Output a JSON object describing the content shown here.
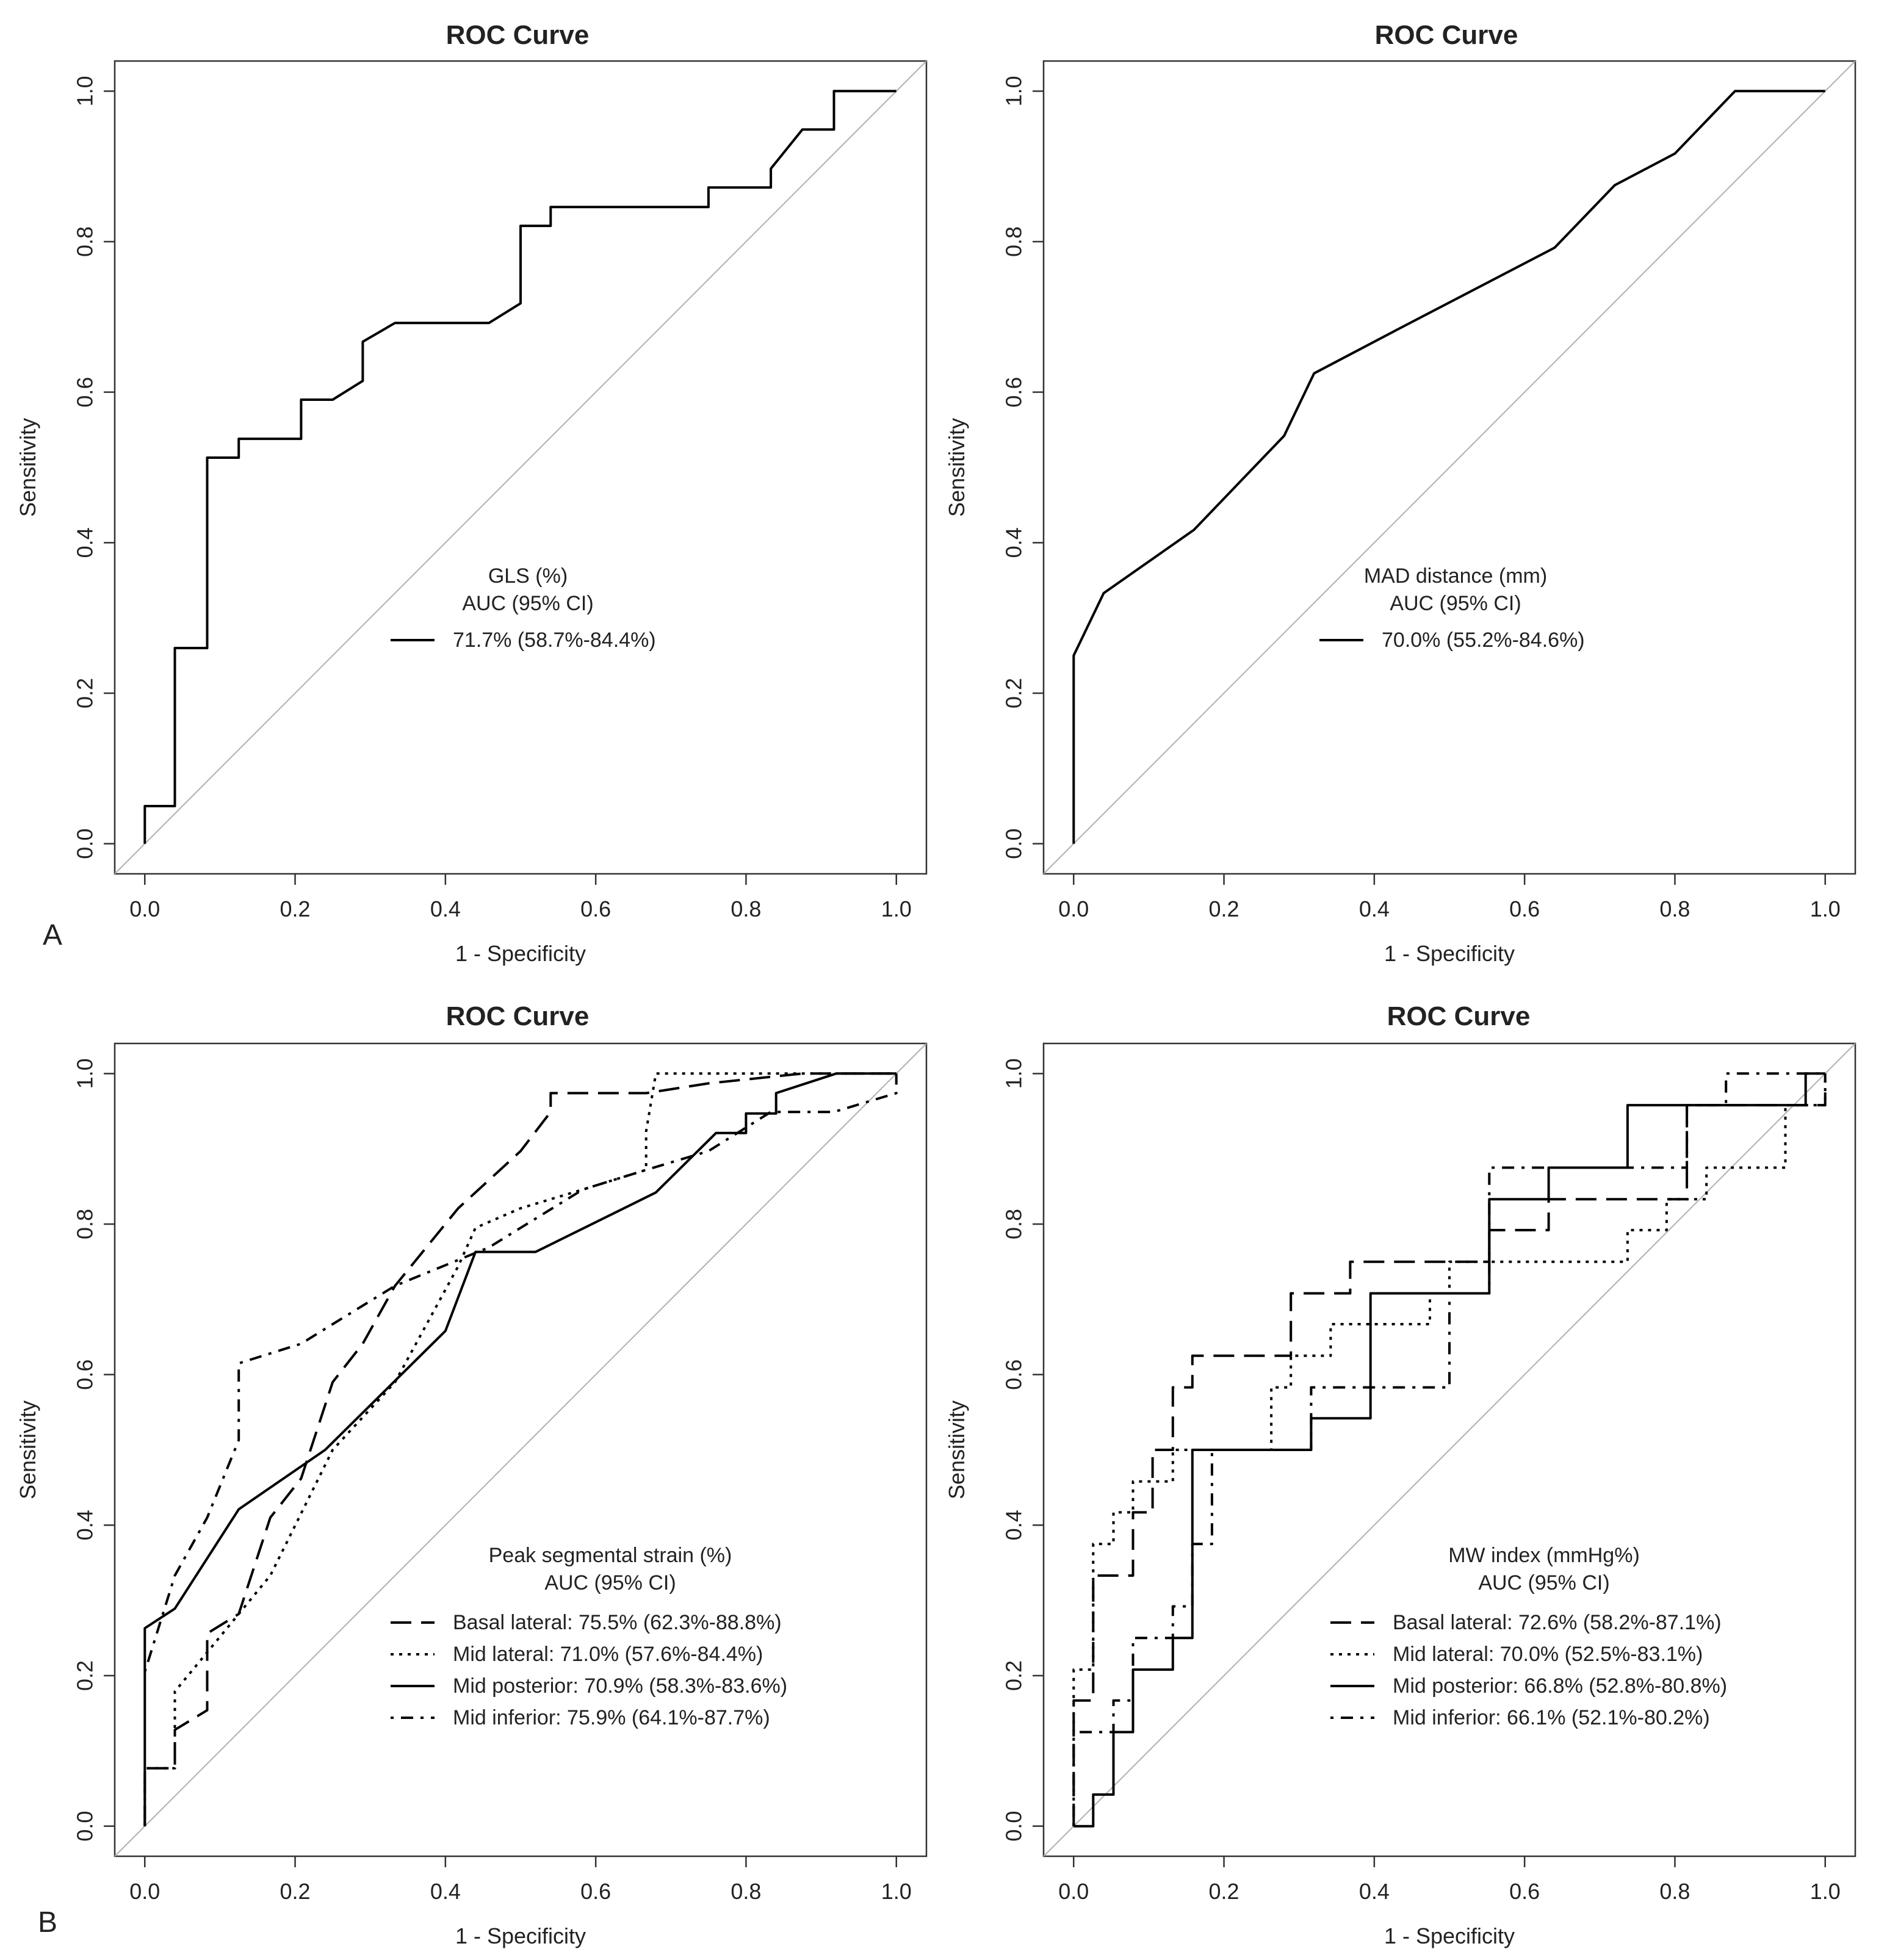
{
  "panel_letters": [
    "A",
    "B"
  ],
  "chart_data": [
    {
      "type": "line",
      "title": "ROC Curve",
      "xlabel": "1 - Specificity",
      "ylabel": "Sensitivity",
      "xlim": [
        0,
        1
      ],
      "ylim": [
        0,
        1
      ],
      "xticks": [
        "0.0",
        "0.2",
        "0.4",
        "0.6",
        "0.8",
        "1.0"
      ],
      "yticks": [
        "0.0",
        "0.2",
        "0.4",
        "0.6",
        "0.8",
        "1.0"
      ],
      "legend_title": [
        "GLS (%)",
        "AUC (95% CI)"
      ],
      "series": [
        {
          "name": "GLS (%)",
          "label": "71.7% (58.7%-84.4%)",
          "dash": "solid",
          "points": [
            [
              0,
              0
            ],
            [
              0,
              0.05
            ],
            [
              0.04,
              0.05
            ],
            [
              0.04,
              0.26
            ],
            [
              0.083,
              0.26
            ],
            [
              0.083,
              0.513
            ],
            [
              0.125,
              0.513
            ],
            [
              0.125,
              0.538
            ],
            [
              0.208,
              0.538
            ],
            [
              0.208,
              0.59
            ],
            [
              0.25,
              0.59
            ],
            [
              0.29,
              0.615
            ],
            [
              0.29,
              0.667
            ],
            [
              0.333,
              0.692
            ],
            [
              0.458,
              0.692
            ],
            [
              0.5,
              0.718
            ],
            [
              0.5,
              0.821
            ],
            [
              0.54,
              0.821
            ],
            [
              0.54,
              0.846
            ],
            [
              0.75,
              0.846
            ],
            [
              0.75,
              0.872
            ],
            [
              0.833,
              0.872
            ],
            [
              0.833,
              0.897
            ],
            [
              0.875,
              0.949
            ],
            [
              0.917,
              0.949
            ],
            [
              0.917,
              1
            ],
            [
              1,
              1
            ]
          ]
        }
      ]
    },
    {
      "type": "line",
      "title": "ROC Curve",
      "xlabel": "1 - Specificity",
      "ylabel": "Sensitivity",
      "xlim": [
        0,
        1
      ],
      "ylim": [
        0,
        1
      ],
      "xticks": [
        "0.0",
        "0.2",
        "0.4",
        "0.6",
        "0.8",
        "1.0"
      ],
      "yticks": [
        "0.0",
        "0.2",
        "0.4",
        "0.6",
        "0.8",
        "1.0"
      ],
      "legend_title": [
        "MAD distance (mm)",
        "AUC (95% CI)"
      ],
      "series": [
        {
          "name": "MAD distance (mm)",
          "label": "70.0% (55.2%-84.6%)",
          "dash": "solid",
          "points": [
            [
              0,
              0
            ],
            [
              0,
              0.25
            ],
            [
              0.04,
              0.333
            ],
            [
              0.16,
              0.417
            ],
            [
              0.28,
              0.542
            ],
            [
              0.32,
              0.625
            ],
            [
              0.44,
              0.688
            ],
            [
              0.64,
              0.792
            ],
            [
              0.72,
              0.875
            ],
            [
              0.8,
              0.917
            ],
            [
              0.88,
              1
            ],
            [
              1,
              1
            ]
          ]
        }
      ]
    },
    {
      "type": "line",
      "title": "ROC Curve",
      "xlabel": "1 - Specificity",
      "ylabel": "Sensitivity",
      "xlim": [
        0,
        1
      ],
      "ylim": [
        0,
        1
      ],
      "xticks": [
        "0.0",
        "0.2",
        "0.4",
        "0.6",
        "0.8",
        "1.0"
      ],
      "yticks": [
        "0.0",
        "0.2",
        "0.4",
        "0.6",
        "0.8",
        "1.0"
      ],
      "legend_title": [
        "Peak segmental strain (%)",
        "AUC (95% CI)"
      ],
      "series": [
        {
          "name": "Basal lateral:",
          "label": "Basal lateral:  75.5% (62.3%-88.8%)",
          "dash": "longdash",
          "points": [
            [
              0,
              0
            ],
            [
              0,
              0.077
            ],
            [
              0.04,
              0.077
            ],
            [
              0.04,
              0.128
            ],
            [
              0.083,
              0.154
            ],
            [
              0.083,
              0.256
            ],
            [
              0.125,
              0.282
            ],
            [
              0.167,
              0.41
            ],
            [
              0.208,
              0.462
            ],
            [
              0.25,
              0.59
            ],
            [
              0.29,
              0.641
            ],
            [
              0.333,
              0.718
            ],
            [
              0.417,
              0.821
            ],
            [
              0.5,
              0.897
            ],
            [
              0.54,
              0.949
            ],
            [
              0.54,
              0.974
            ],
            [
              0.667,
              0.974
            ],
            [
              0.75,
              0.987
            ],
            [
              0.875,
              1
            ],
            [
              1,
              1
            ]
          ]
        },
        {
          "name": "Mid lateral:",
          "label": "Mid lateral: 71.0% (57.6%-84.4%)",
          "dash": "dotted",
          "points": [
            [
              0,
              0
            ],
            [
              0,
              0.077
            ],
            [
              0.04,
              0.077
            ],
            [
              0.04,
              0.179
            ],
            [
              0.083,
              0.231
            ],
            [
              0.125,
              0.282
            ],
            [
              0.167,
              0.333
            ],
            [
              0.25,
              0.5
            ],
            [
              0.333,
              0.59
            ],
            [
              0.375,
              0.667
            ],
            [
              0.417,
              0.744
            ],
            [
              0.44,
              0.795
            ],
            [
              0.5,
              0.821
            ],
            [
              0.583,
              0.846
            ],
            [
              0.667,
              0.872
            ],
            [
              0.667,
              0.923
            ],
            [
              0.68,
              1
            ],
            [
              1,
              1
            ]
          ]
        },
        {
          "name": "Mid posterior:",
          "label": "Mid posterior: 70.9% (58.3%-83.6%)",
          "dash": "solid",
          "points": [
            [
              0,
              0
            ],
            [
              0,
              0.263
            ],
            [
              0.04,
              0.289
            ],
            [
              0.125,
              0.421
            ],
            [
              0.24,
              0.5
            ],
            [
              0.4,
              0.658
            ],
            [
              0.44,
              0.763
            ],
            [
              0.52,
              0.763
            ],
            [
              0.68,
              0.842
            ],
            [
              0.76,
              0.921
            ],
            [
              0.8,
              0.921
            ],
            [
              0.8,
              0.947
            ],
            [
              0.84,
              0.947
            ],
            [
              0.84,
              0.974
            ],
            [
              0.92,
              1
            ],
            [
              1,
              1
            ]
          ]
        },
        {
          "name": "Mid inferior:",
          "label": "Mid inferior: 75.9% (64.1%-87.7%)",
          "dash": "dashdot",
          "points": [
            [
              0,
              0.205
            ],
            [
              0.04,
              0.333
            ],
            [
              0.083,
              0.41
            ],
            [
              0.125,
              0.513
            ],
            [
              0.125,
              0.615
            ],
            [
              0.208,
              0.641
            ],
            [
              0.25,
              0.667
            ],
            [
              0.333,
              0.718
            ],
            [
              0.458,
              0.769
            ],
            [
              0.5,
              0.795
            ],
            [
              0.583,
              0.846
            ],
            [
              0.667,
              0.872
            ],
            [
              0.75,
              0.897
            ],
            [
              0.833,
              0.949
            ],
            [
              0.917,
              0.949
            ],
            [
              1,
              0.974
            ],
            [
              1,
              1
            ]
          ]
        }
      ]
    },
    {
      "type": "line",
      "title": "ROC Curve",
      "xlabel": "1 - Specificity",
      "ylabel": "Sensitivity",
      "xlim": [
        0,
        1
      ],
      "ylim": [
        0,
        1
      ],
      "xticks": [
        "0.0",
        "0.2",
        "0.4",
        "0.6",
        "0.8",
        "1.0"
      ],
      "yticks": [
        "0.0",
        "0.2",
        "0.4",
        "0.6",
        "0.8",
        "1.0"
      ],
      "legend_title": [
        "MW index (mmHg%)",
        "AUC (95% CI)"
      ],
      "series": [
        {
          "name": "Basal lateral:",
          "label": "Basal lateral: 72.6% (58.2%-87.1%)",
          "dash": "longdash",
          "points": [
            [
              0,
              0
            ],
            [
              0,
              0.167
            ],
            [
              0.026,
              0.167
            ],
            [
              0.026,
              0.333
            ],
            [
              0.079,
              0.333
            ],
            [
              0.079,
              0.417
            ],
            [
              0.105,
              0.417
            ],
            [
              0.105,
              0.5
            ],
            [
              0.132,
              0.5
            ],
            [
              0.132,
              0.583
            ],
            [
              0.158,
              0.583
            ],
            [
              0.158,
              0.625
            ],
            [
              0.289,
              0.625
            ],
            [
              0.289,
              0.708
            ],
            [
              0.368,
              0.708
            ],
            [
              0.368,
              0.75
            ],
            [
              0.553,
              0.75
            ],
            [
              0.553,
              0.792
            ],
            [
              0.632,
              0.792
            ],
            [
              0.632,
              0.833
            ],
            [
              0.816,
              0.833
            ],
            [
              0.816,
              0.958
            ],
            [
              0.842,
              0.958
            ],
            [
              1,
              0.958
            ],
            [
              1,
              1
            ]
          ]
        },
        {
          "name": "Mid lateral:",
          "label": "Mid lateral: 70.0% (52.5%-83.1%)",
          "dash": "dotted",
          "points": [
            [
              0,
              0
            ],
            [
              0,
              0.208
            ],
            [
              0.026,
              0.208
            ],
            [
              0.026,
              0.375
            ],
            [
              0.053,
              0.375
            ],
            [
              0.053,
              0.417
            ],
            [
              0.079,
              0.417
            ],
            [
              0.079,
              0.458
            ],
            [
              0.132,
              0.458
            ],
            [
              0.132,
              0.5
            ],
            [
              0.263,
              0.5
            ],
            [
              0.263,
              0.583
            ],
            [
              0.289,
              0.583
            ],
            [
              0.289,
              0.625
            ],
            [
              0.342,
              0.625
            ],
            [
              0.342,
              0.667
            ],
            [
              0.474,
              0.667
            ],
            [
              0.474,
              0.708
            ],
            [
              0.5,
              0.708
            ],
            [
              0.5,
              0.75
            ],
            [
              0.737,
              0.75
            ],
            [
              0.737,
              0.792
            ],
            [
              0.789,
              0.792
            ],
            [
              0.789,
              0.833
            ],
            [
              0.842,
              0.833
            ],
            [
              0.842,
              0.875
            ],
            [
              0.947,
              0.875
            ],
            [
              0.947,
              0.958
            ],
            [
              1,
              0.958
            ],
            [
              1,
              1
            ]
          ]
        },
        {
          "name": "Mid posterior:",
          "label": "Mid posterior: 66.8% (52.8%-80.8%)",
          "dash": "solid",
          "points": [
            [
              0,
              0
            ],
            [
              0.026,
              0
            ],
            [
              0.026,
              0.042
            ],
            [
              0.053,
              0.042
            ],
            [
              0.053,
              0.125
            ],
            [
              0.079,
              0.125
            ],
            [
              0.079,
              0.208
            ],
            [
              0.132,
              0.208
            ],
            [
              0.132,
              0.25
            ],
            [
              0.158,
              0.25
            ],
            [
              0.158,
              0.5
            ],
            [
              0.316,
              0.5
            ],
            [
              0.316,
              0.542
            ],
            [
              0.395,
              0.542
            ],
            [
              0.395,
              0.708
            ],
            [
              0.553,
              0.708
            ],
            [
              0.553,
              0.833
            ],
            [
              0.632,
              0.833
            ],
            [
              0.632,
              0.875
            ],
            [
              0.737,
              0.875
            ],
            [
              0.737,
              0.958
            ],
            [
              0.974,
              0.958
            ],
            [
              0.974,
              1
            ],
            [
              1,
              1
            ]
          ]
        },
        {
          "name": "Mid inferior:",
          "label": "Mid inferior: 66.1% (52.1%-80.2%)",
          "dash": "dashdot",
          "points": [
            [
              0,
              0
            ],
            [
              0,
              0.125
            ],
            [
              0.053,
              0.125
            ],
            [
              0.053,
              0.167
            ],
            [
              0.079,
              0.167
            ],
            [
              0.079,
              0.25
            ],
            [
              0.132,
              0.25
            ],
            [
              0.132,
              0.292
            ],
            [
              0.158,
              0.292
            ],
            [
              0.158,
              0.375
            ],
            [
              0.184,
              0.375
            ],
            [
              0.184,
              0.5
            ],
            [
              0.316,
              0.5
            ],
            [
              0.316,
              0.583
            ],
            [
              0.5,
              0.583
            ],
            [
              0.5,
              0.708
            ],
            [
              0.553,
              0.708
            ],
            [
              0.553,
              0.875
            ],
            [
              0.816,
              0.875
            ],
            [
              0.816,
              0.958
            ],
            [
              0.868,
              0.958
            ],
            [
              0.868,
              1
            ],
            [
              1,
              1
            ]
          ]
        }
      ]
    }
  ]
}
